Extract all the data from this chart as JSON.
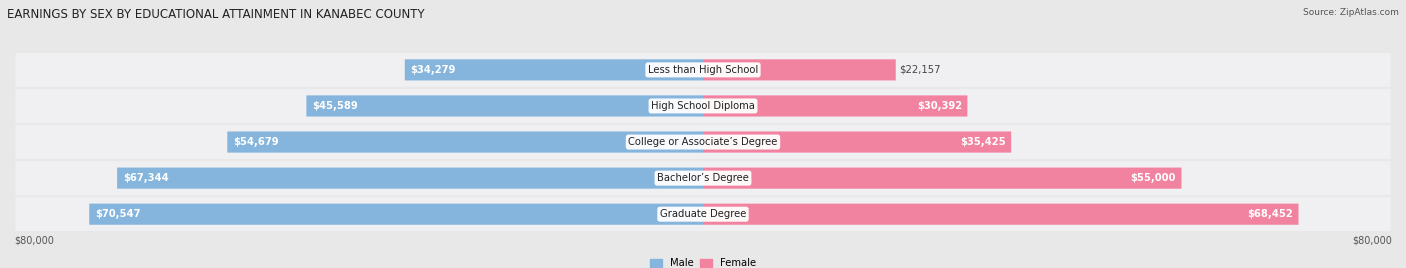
{
  "title": "EARNINGS BY SEX BY EDUCATIONAL ATTAINMENT IN KANABEC COUNTY",
  "source": "Source: ZipAtlas.com",
  "categories": [
    "Less than High School",
    "High School Diploma",
    "College or Associate’s Degree",
    "Bachelor’s Degree",
    "Graduate Degree"
  ],
  "male_values": [
    34279,
    45589,
    54679,
    67344,
    70547
  ],
  "female_values": [
    22157,
    30392,
    35425,
    55000,
    68452
  ],
  "male_color": "#85b5dc",
  "female_color": "#f283a0",
  "max_val": 80000,
  "bg_color": "#e8e8e8",
  "row_bg_color": "#f5f5f5",
  "row_bg_color2": "#e8e8e8",
  "title_fontsize": 8.5,
  "label_fontsize": 7.2,
  "axis_label_fontsize": 7,
  "source_fontsize": 6.5
}
